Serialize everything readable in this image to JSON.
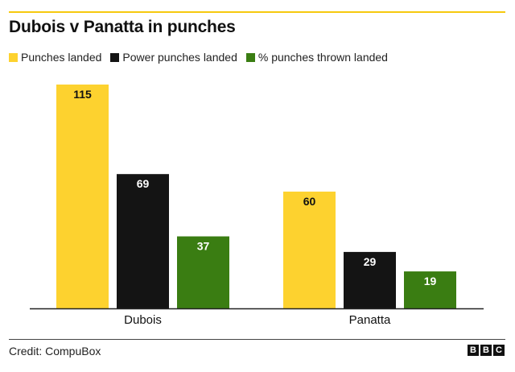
{
  "title": "Dubois v Panatta in punches",
  "credit": "Credit: CompuBox",
  "logo": [
    "B",
    "B",
    "C"
  ],
  "chart_data": {
    "type": "bar",
    "title": "Dubois v Panatta in punches",
    "categories": [
      "Dubois",
      "Panatta"
    ],
    "series": [
      {
        "name": "Punches landed",
        "color": "#fdd22f",
        "values": [
          115,
          60
        ]
      },
      {
        "name": "Power punches landed",
        "color": "#141414",
        "values": [
          69,
          29
        ]
      },
      {
        "name": "% punches thrown landed",
        "color": "#3a7d12",
        "values": [
          37,
          19
        ]
      }
    ],
    "ylim": [
      0,
      115
    ],
    "grid": false,
    "legend_position": "top-left",
    "data_labels": true,
    "label_colors": [
      "#111111",
      "#ffffff",
      "#ffffff"
    ]
  }
}
